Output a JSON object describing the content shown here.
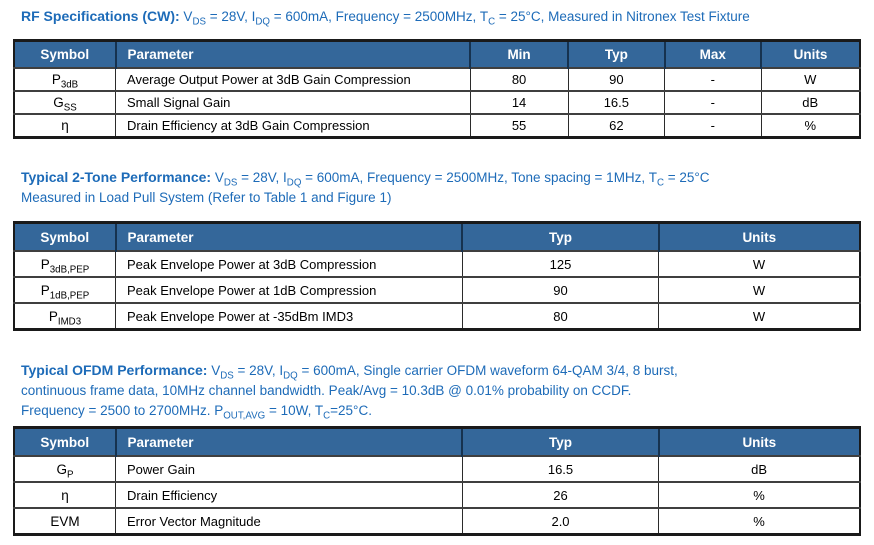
{
  "colors": {
    "title_blue": "#1D6BB8",
    "table_header_bg": "#34679A",
    "table_header_text": "#FFFFFF",
    "body_text": "#000000",
    "outer_border": "#1A1A1A",
    "row_divider": "#3F3F3F"
  },
  "sections": [
    {
      "heading": {
        "bold": "RF Specifications (CW):",
        "lines": [
          " V~DS~ = 28V, I~DQ~ = 600mA,  Frequency = 2500MHz, T~C~ = 25°C, Measured in Nitronex Test Fixture"
        ]
      },
      "table": {
        "columns": [
          "Symbol",
          "Parameter",
          "Min",
          "Typ",
          "Max",
          "Units"
        ],
        "widths": [
          12,
          41.9,
          11.6,
          11.4,
          11.4,
          11.7
        ],
        "aligns": [
          "center",
          "left",
          "center",
          "center",
          "center",
          "center"
        ],
        "rows": [
          [
            "P~3dB~",
            "Average Output Power at 3dB Gain Compression",
            "80",
            "90",
            "-",
            "W"
          ],
          [
            "G~SS~",
            "Small Signal Gain",
            "14",
            "16.5",
            "-",
            "dB"
          ],
          [
            "η",
            "Drain Efficiency at 3dB Gain Compression",
            "55",
            "62",
            "-",
            "%"
          ]
        ]
      }
    },
    {
      "heading": {
        "bold": "Typical 2-Tone Performance:",
        "lines": [
          " V~DS~ = 28V, I~DQ~ = 600mA, Frequency = 2500MHz, Tone spacing = 1MHz, T~C~ = 25°C",
          "Measured in Load Pull System (Refer to Table 1 and Figure 1)"
        ]
      },
      "table": {
        "columns": [
          "Symbol",
          "Parameter",
          "Typ",
          "Units"
        ],
        "widths": [
          12,
          41,
          23.2,
          23.8
        ],
        "aligns": [
          "center",
          "left",
          "center",
          "center"
        ],
        "rows": [
          [
            "P~3dB,PEP~",
            "Peak Envelope Power at 3dB Compression",
            "125",
            "W"
          ],
          [
            "P~1dB,PEP~",
            "Peak Envelope Power at 1dB Compression",
            "90",
            "W"
          ],
          [
            "P~IMD3~",
            "Peak Envelope Power at -35dBm IMD3",
            "80",
            "W"
          ]
        ]
      }
    },
    {
      "heading": {
        "bold": "Typical OFDM Performance:",
        "lines": [
          " V~DS~ = 28V, I~DQ~ = 600mA, Single carrier OFDM waveform 64-QAM 3/4, 8 burst,",
          "continuous frame data, 10MHz channel bandwidth. Peak/Avg = 10.3dB @ 0.01% probability on CCDF.",
          "Frequency = 2500 to 2700MHz. P~OUT,AVG~ = 10W, T~C~=25°C."
        ]
      },
      "table": {
        "columns": [
          "Symbol",
          "Parameter",
          "Typ",
          "Units"
        ],
        "widths": [
          12,
          41,
          23.2,
          23.8
        ],
        "aligns": [
          "center",
          "left",
          "center",
          "center"
        ],
        "rows": [
          [
            "G~P~",
            "Power Gain",
            "16.5",
            "dB"
          ],
          [
            "η",
            "Drain Efficiency",
            "26",
            "%"
          ],
          [
            "EVM",
            "Error Vector Magnitude",
            "2.0",
            "%"
          ]
        ]
      }
    }
  ]
}
